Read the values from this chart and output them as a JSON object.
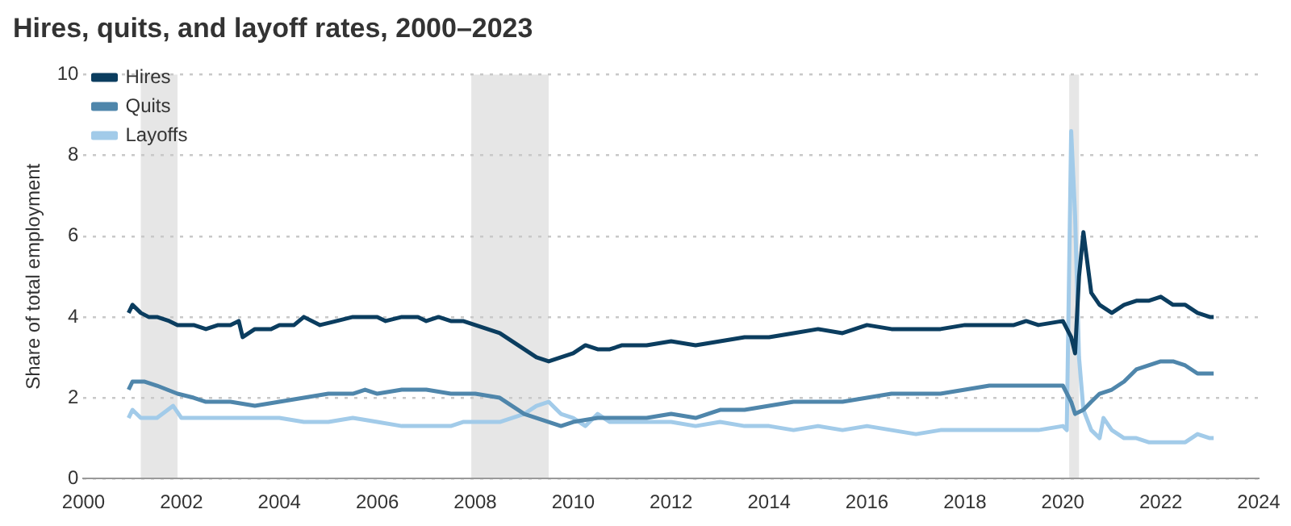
{
  "chart_data": {
    "type": "line",
    "title": "Hires, quits, and layoff rates, 2000–2023",
    "ylabel": "Share of total employment",
    "xlim": [
      2000,
      2024
    ],
    "xticks": [
      2000,
      2002,
      2004,
      2006,
      2008,
      2010,
      2012,
      2014,
      2016,
      2018,
      2020,
      2022,
      2024
    ],
    "ylim": [
      0,
      10
    ],
    "yticks": [
      0,
      2,
      4,
      6,
      8,
      10
    ],
    "grid": "y",
    "legend": "top left",
    "marker": "none",
    "line_style": "solid",
    "bands": [
      {
        "axis": "x",
        "from": 2001.17,
        "to": 2001.92,
        "color": "#e6e6e6"
      },
      {
        "axis": "x",
        "from": 2007.92,
        "to": 2009.5,
        "color": "#e6e6e6"
      },
      {
        "axis": "x",
        "from": 2020.13,
        "to": 2020.33,
        "color": "#e6e6e6"
      }
    ],
    "series": [
      {
        "name": "Hires",
        "color": "#0b3d5f",
        "x": [
          2000.92,
          2001.0,
          2001.17,
          2001.33,
          2001.5,
          2001.75,
          2001.92,
          2002.25,
          2002.5,
          2002.75,
          2003.0,
          2003.17,
          2003.25,
          2003.5,
          2003.83,
          2004.0,
          2004.3,
          2004.5,
          2004.83,
          2005.17,
          2005.5,
          2005.75,
          2006.0,
          2006.17,
          2006.5,
          2006.83,
          2007.0,
          2007.25,
          2007.5,
          2007.75,
          2008.0,
          2008.25,
          2008.5,
          2008.75,
          2009.0,
          2009.25,
          2009.5,
          2009.75,
          2010.0,
          2010.25,
          2010.5,
          2010.75,
          2011.0,
          2011.25,
          2011.5,
          2012.0,
          2012.5,
          2013.0,
          2013.5,
          2014.0,
          2014.5,
          2015.0,
          2015.5,
          2016.0,
          2016.5,
          2017.0,
          2017.5,
          2018.0,
          2018.5,
          2019.0,
          2019.25,
          2019.5,
          2020.0,
          2020.17,
          2020.25,
          2020.33,
          2020.42,
          2020.58,
          2020.75,
          2021.0,
          2021.25,
          2021.5,
          2021.75,
          2022.0,
          2022.25,
          2022.5,
          2022.75,
          2023.0,
          2023.08
        ],
        "values": [
          4.1,
          4.3,
          4.1,
          4.0,
          4.0,
          3.9,
          3.8,
          3.8,
          3.7,
          3.8,
          3.8,
          3.9,
          3.5,
          3.7,
          3.7,
          3.8,
          3.8,
          4.0,
          3.8,
          3.9,
          4.0,
          4.0,
          4.0,
          3.9,
          4.0,
          4.0,
          3.9,
          4.0,
          3.9,
          3.9,
          3.8,
          3.7,
          3.6,
          3.4,
          3.2,
          3.0,
          2.9,
          3.0,
          3.1,
          3.3,
          3.2,
          3.2,
          3.3,
          3.3,
          3.3,
          3.4,
          3.3,
          3.4,
          3.5,
          3.5,
          3.6,
          3.7,
          3.6,
          3.8,
          3.7,
          3.7,
          3.7,
          3.8,
          3.8,
          3.8,
          3.9,
          3.8,
          3.9,
          3.5,
          3.1,
          5.0,
          6.1,
          4.6,
          4.3,
          4.1,
          4.3,
          4.4,
          4.4,
          4.5,
          4.3,
          4.3,
          4.1,
          4.0,
          4.0
        ]
      },
      {
        "name": "Quits",
        "color": "#4f86ab",
        "x": [
          2000.92,
          2001.0,
          2001.25,
          2001.5,
          2001.92,
          2002.25,
          2002.5,
          2003.0,
          2003.5,
          2004.0,
          2004.5,
          2005.0,
          2005.5,
          2005.75,
          2006.0,
          2006.5,
          2007.0,
          2007.5,
          2008.0,
          2008.5,
          2008.75,
          2009.0,
          2009.5,
          2009.75,
          2010.0,
          2010.5,
          2011.0,
          2011.5,
          2012.0,
          2012.5,
          2013.0,
          2013.5,
          2014.0,
          2014.5,
          2015.0,
          2015.5,
          2016.0,
          2016.5,
          2017.0,
          2017.5,
          2018.0,
          2018.5,
          2019.0,
          2019.5,
          2020.0,
          2020.17,
          2020.25,
          2020.42,
          2020.58,
          2020.75,
          2021.0,
          2021.25,
          2021.5,
          2021.75,
          2022.0,
          2022.25,
          2022.5,
          2022.75,
          2023.0,
          2023.08
        ],
        "values": [
          2.2,
          2.4,
          2.4,
          2.3,
          2.1,
          2.0,
          1.9,
          1.9,
          1.8,
          1.9,
          2.0,
          2.1,
          2.1,
          2.2,
          2.1,
          2.2,
          2.2,
          2.1,
          2.1,
          2.0,
          1.8,
          1.6,
          1.4,
          1.3,
          1.4,
          1.5,
          1.5,
          1.5,
          1.6,
          1.5,
          1.7,
          1.7,
          1.8,
          1.9,
          1.9,
          1.9,
          2.0,
          2.1,
          2.1,
          2.1,
          2.2,
          2.3,
          2.3,
          2.3,
          2.3,
          1.9,
          1.6,
          1.7,
          1.9,
          2.1,
          2.2,
          2.4,
          2.7,
          2.8,
          2.9,
          2.9,
          2.8,
          2.6,
          2.6,
          2.6
        ]
      },
      {
        "name": "Layoffs",
        "color": "#a2cbe9",
        "x": [
          2000.92,
          2001.0,
          2001.17,
          2001.5,
          2001.83,
          2002.0,
          2002.5,
          2003.0,
          2003.5,
          2004.0,
          2004.5,
          2005.0,
          2005.5,
          2006.0,
          2006.5,
          2007.0,
          2007.5,
          2007.75,
          2008.0,
          2008.5,
          2008.75,
          2009.0,
          2009.25,
          2009.5,
          2009.75,
          2010.0,
          2010.25,
          2010.5,
          2010.75,
          2011.0,
          2011.5,
          2012.0,
          2012.5,
          2013.0,
          2013.5,
          2014.0,
          2014.5,
          2015.0,
          2015.5,
          2016.0,
          2016.5,
          2017.0,
          2017.5,
          2018.0,
          2018.5,
          2019.0,
          2019.5,
          2020.0,
          2020.08,
          2020.17,
          2020.25,
          2020.33,
          2020.42,
          2020.58,
          2020.75,
          2020.83,
          2021.0,
          2021.25,
          2021.5,
          2021.75,
          2022.0,
          2022.5,
          2022.75,
          2023.0,
          2023.08
        ],
        "values": [
          1.5,
          1.7,
          1.5,
          1.5,
          1.8,
          1.5,
          1.5,
          1.5,
          1.5,
          1.5,
          1.4,
          1.4,
          1.5,
          1.4,
          1.3,
          1.3,
          1.3,
          1.4,
          1.4,
          1.4,
          1.5,
          1.6,
          1.8,
          1.9,
          1.6,
          1.5,
          1.3,
          1.6,
          1.4,
          1.4,
          1.4,
          1.4,
          1.3,
          1.4,
          1.3,
          1.3,
          1.2,
          1.3,
          1.2,
          1.3,
          1.2,
          1.1,
          1.2,
          1.2,
          1.2,
          1.2,
          1.2,
          1.3,
          1.2,
          8.6,
          6.5,
          3.0,
          1.7,
          1.2,
          1.0,
          1.5,
          1.2,
          1.0,
          1.0,
          0.9,
          0.9,
          0.9,
          1.1,
          1.0,
          1.0
        ]
      }
    ]
  }
}
